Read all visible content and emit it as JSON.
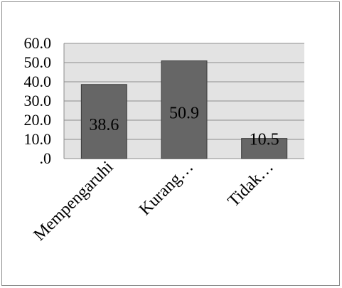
{
  "chart_data": {
    "type": "bar",
    "categories": [
      "Mempengaruhi",
      "Kurang…",
      "Tidak…"
    ],
    "values": [
      38.6,
      50.9,
      10.5
    ],
    "data_labels": [
      "38.6",
      "50.9",
      "10.5"
    ],
    "yticks": [
      ".0",
      "10.0",
      "20.0",
      "30.0",
      "40.0",
      "50.0",
      "60.0"
    ],
    "ylim": [
      0,
      60
    ],
    "grid": true,
    "legend": "none",
    "colors": {
      "bar": "#666666",
      "bar_edge": "#3a3a3a",
      "plot_bg": "#e3e3e3",
      "grid": "#8c8c8c"
    }
  }
}
